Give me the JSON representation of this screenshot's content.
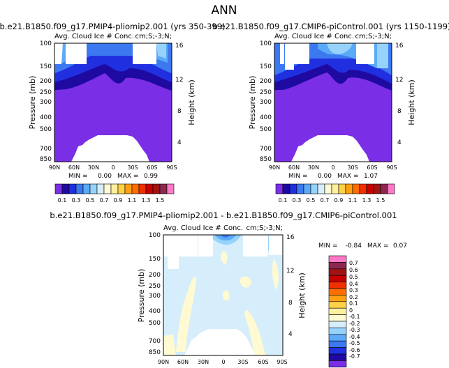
{
  "figure_title": "ANN",
  "panels": [
    {
      "case": "b.e21.B1850.f09_g17.PMIP4-pliomip2.001",
      "years": "(yrs 350-399)",
      "title": "b.e21.B1850.f09_g17.PMIP4-pliomip2.001  (yrs 350-399)"
    },
    {
      "case": "b.e21.B1850.f09_g17.CMIP6-piControl.001",
      "years": "(yrs 1150-1199)",
      "title": "b.e21.B1850.f09_g17.CMIP6-piControl.001  (yrs 1150-1199)"
    }
  ],
  "diff_title": "b.e21.B1850.f09_g17.PMIP4-pliomip2.001 - b.e21.B1850.f09_g17.CMIP6-piControl.001",
  "colors": {
    "abs_scale": [
      "#7a2ee6",
      "#1e0aa0",
      "#2030e0",
      "#3c78f0",
      "#5aaaf8",
      "#96d2fa",
      "#d6eefc",
      "#fffad2",
      "#fff0a0",
      "#ffd246",
      "#ffa014",
      "#ff6e00",
      "#f03000",
      "#c80000",
      "#a01414",
      "#8c2850",
      "#ff78c8"
    ],
    "diff_scale": [
      "#7a2ee6",
      "#1e0aa0",
      "#2030e0",
      "#3c78f0",
      "#5aaaf8",
      "#96d2fa",
      "#d6eefc",
      "#fffad2",
      "#fff0a0",
      "#ffd246",
      "#ffa014",
      "#ff6e00",
      "#f03000",
      "#c80000",
      "#a01414",
      "#8c2850",
      "#ff78c8"
    ]
  },
  "chart_data": [
    {
      "type": "contour",
      "panel": "pliomip2",
      "title": "b.e21.B1850.f09_g17.PMIP4-pliomip2.001  (yrs 350-399)",
      "left_label": "Avg. Cloud Ice # Conc.",
      "right_label": "cm;S;-3;N;",
      "ylabel": "Pressure (mb)",
      "ylabel_right": "Height (km)",
      "yticks": [
        "100",
        "150",
        "200",
        "250",
        "300",
        "400",
        "500",
        "700",
        "850"
      ],
      "yticks_right": [
        "16",
        "12",
        "8",
        "4"
      ],
      "xticks": [
        "90N",
        "60N",
        "30N",
        "0",
        "30S",
        "60S",
        "90S"
      ],
      "min_label": "MIN =",
      "min": "0.00",
      "max_label": "MAX =",
      "max": "0.99",
      "levels": [
        "0.1",
        "0.3",
        "0.5",
        "0.7",
        "0.9",
        "1.1",
        "1.3",
        "1.5"
      ]
    },
    {
      "type": "contour",
      "panel": "piControl",
      "title": "b.e21.B1850.f09_g17.CMIP6-piControl.001  (yrs 1150-1199)",
      "left_label": "Avg. Cloud Ice # Conc.",
      "right_label": "cm;S;-3;N;",
      "ylabel": "Pressure (mb)",
      "ylabel_right": "Height (km)",
      "yticks": [
        "100",
        "150",
        "200",
        "250",
        "300",
        "400",
        "500",
        "700",
        "850"
      ],
      "yticks_right": [
        "16",
        "12",
        "8",
        "4"
      ],
      "xticks": [
        "90N",
        "60N",
        "30N",
        "0",
        "30S",
        "60S",
        "90S"
      ],
      "min_label": "MIN =",
      "min": "0.00",
      "max_label": "MAX =",
      "max": "1.07",
      "levels": [
        "0.1",
        "0.3",
        "0.5",
        "0.7",
        "0.9",
        "1.1",
        "1.3",
        "1.5"
      ]
    },
    {
      "type": "contour",
      "panel": "difference",
      "title": "b.e21.B1850.f09_g17.PMIP4-pliomip2.001 - b.e21.B1850.f09_g17.CMIP6-piControl.001",
      "left_label": "Avg. Cloud Ice # Conc.",
      "right_label": "cm;S;-3;N;",
      "ylabel": "Pressure (mb)",
      "ylabel_right": "Height (km)",
      "yticks": [
        "100",
        "150",
        "200",
        "250",
        "300",
        "400",
        "500",
        "700",
        "850"
      ],
      "yticks_right": [
        "16",
        "12",
        "8",
        "4"
      ],
      "xticks": [
        "90N",
        "60N",
        "30N",
        "0",
        "30S",
        "60S",
        "90S"
      ],
      "min_label": "MIN =",
      "min": "-0.84",
      "max_label": "MAX =",
      "max": "0.07",
      "levels": [
        "0.7",
        "0.6",
        "0.5",
        "0.4",
        "0.3",
        "0.2",
        "0.1",
        "0",
        "-0.1",
        "-0.2",
        "-0.3",
        "-0.4",
        "-0.5",
        "-0.6",
        "-0.7"
      ]
    }
  ]
}
